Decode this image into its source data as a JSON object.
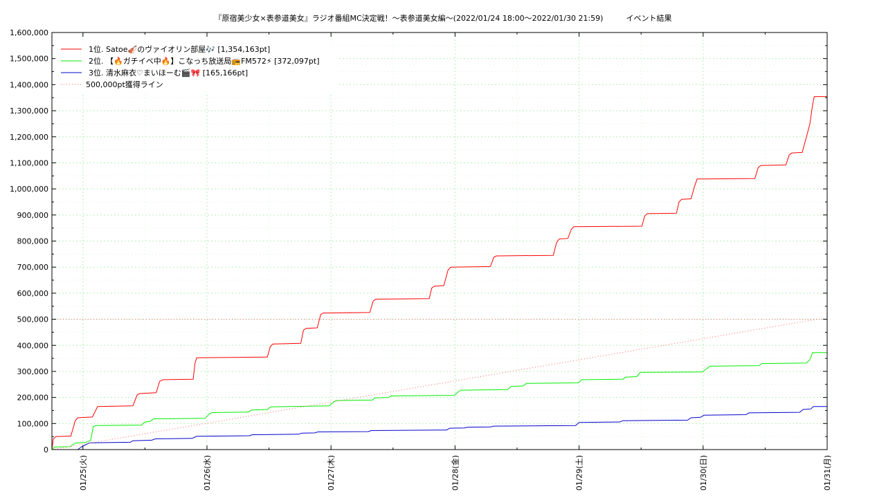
{
  "chart_data": {
    "type": "line",
    "title": "『原宿美少女×表参道美女』ラジオ番組MC決定戦！～表参道美女編～(2022/01/24 18:00～2022/01/30 21:59)　　　イベント結果",
    "xlabel": "",
    "ylabel": "",
    "x_range": [
      "2022/01/24 18:00",
      "2022/01/31 00:00"
    ],
    "ylim": [
      0,
      1600000
    ],
    "y_ticks": [
      "0",
      "100,000",
      "200,000",
      "300,000",
      "400,000",
      "500,000",
      "600,000",
      "700,000",
      "800,000",
      "900,000",
      "1,000,000",
      "1,100,000",
      "1,200,000",
      "1,300,000",
      "1,400,000",
      "1,500,000",
      "1,600,000"
    ],
    "x_ticks": [
      {
        "date": "2022/01/25",
        "label": "01/25(火)"
      },
      {
        "date": "2022/01/26",
        "label": "01/26(水)"
      },
      {
        "date": "2022/01/27",
        "label": "01/27(木)"
      },
      {
        "date": "2022/01/28",
        "label": "01/28(金)"
      },
      {
        "date": "2022/01/29",
        "label": "01/29(土)"
      },
      {
        "date": "2022/01/30",
        "label": "01/30(日)"
      },
      {
        "date": "2022/01/31",
        "label": "01/31(月)"
      }
    ],
    "grid": true,
    "legend_position": "top-left",
    "series": [
      {
        "name": "1位. Satoe🎻のヴァイオリン部屋🎶 [1,354,163pt]",
        "color": "#ff0000",
        "style": "solid",
        "points": [
          [
            "2022/01/24 18:00",
            0
          ],
          [
            "2022/01/24 18:15",
            40000
          ],
          [
            "2022/01/24 18:45",
            50000
          ],
          [
            "2022/01/24 21:40",
            52000
          ],
          [
            "2022/01/24 22:30",
            110000
          ],
          [
            "2022/01/24 23:00",
            122000
          ],
          [
            "2022/01/25 01:50",
            125000
          ],
          [
            "2022/01/25 02:50",
            165000
          ],
          [
            "2022/01/25 09:40",
            168000
          ],
          [
            "2022/01/25 10:30",
            210000
          ],
          [
            "2022/01/25 11:00",
            215000
          ],
          [
            "2022/01/25 14:10",
            218000
          ],
          [
            "2022/01/25 14:50",
            262000
          ],
          [
            "2022/01/25 15:30",
            268000
          ],
          [
            "2022/01/25 21:20",
            270000
          ],
          [
            "2022/01/25 21:40",
            330000
          ],
          [
            "2022/01/25 22:00",
            352000
          ],
          [
            "2022/01/26 11:40",
            355000
          ],
          [
            "2022/01/26 12:15",
            395000
          ],
          [
            "2022/01/26 12:45",
            405000
          ],
          [
            "2022/01/26 18:10",
            408000
          ],
          [
            "2022/01/26 18:40",
            458000
          ],
          [
            "2022/01/26 19:10",
            465000
          ],
          [
            "2022/01/26 21:20",
            467000
          ],
          [
            "2022/01/26 22:00",
            518000
          ],
          [
            "2022/01/26 22:30",
            524000
          ],
          [
            "2022/01/27 07:30",
            526000
          ],
          [
            "2022/01/27 08:10",
            570000
          ],
          [
            "2022/01/27 08:40",
            577000
          ],
          [
            "2022/01/27 19:00",
            579000
          ],
          [
            "2022/01/27 19:30",
            620000
          ],
          [
            "2022/01/27 20:00",
            627000
          ],
          [
            "2022/01/27 21:50",
            629000
          ],
          [
            "2022/01/27 22:40",
            690000
          ],
          [
            "2022/01/27 23:10",
            700000
          ],
          [
            "2022/01/28 06:50",
            702000
          ],
          [
            "2022/01/28 07:30",
            738000
          ],
          [
            "2022/01/28 08:00",
            743000
          ],
          [
            "2022/01/28 19:00",
            745000
          ],
          [
            "2022/01/28 19:40",
            795000
          ],
          [
            "2022/01/28 20:10",
            808000
          ],
          [
            "2022/01/28 21:50",
            810000
          ],
          [
            "2022/01/28 22:30",
            845000
          ],
          [
            "2022/01/28 23:00",
            855000
          ],
          [
            "2022/01/29 12:10",
            857000
          ],
          [
            "2022/01/29 12:40",
            895000
          ],
          [
            "2022/01/29 13:10",
            905000
          ],
          [
            "2022/01/29 18:50",
            907000
          ],
          [
            "2022/01/29 19:20",
            950000
          ],
          [
            "2022/01/29 19:50",
            960000
          ],
          [
            "2022/01/29 21:40",
            962000
          ],
          [
            "2022/01/29 22:20",
            1010000
          ],
          [
            "2022/01/29 22:50",
            1038000
          ],
          [
            "2022/01/30 10:00",
            1040000
          ],
          [
            "2022/01/30 10:40",
            1082000
          ],
          [
            "2022/01/30 11:10",
            1090000
          ],
          [
            "2022/01/30 16:00",
            1092000
          ],
          [
            "2022/01/30 16:40",
            1130000
          ],
          [
            "2022/01/30 17:10",
            1138000
          ],
          [
            "2022/01/30 19:10",
            1140000
          ],
          [
            "2022/01/30 20:00",
            1200000
          ],
          [
            "2022/01/30 20:40",
            1250000
          ],
          [
            "2022/01/30 21:10",
            1320000
          ],
          [
            "2022/01/30 21:30",
            1354163
          ],
          [
            "2022/01/31 00:00",
            1354163
          ]
        ]
      },
      {
        "name": "2位. 【🔥ガチイベ中🔥】こなっち放送局📻FM572⚡ [372,097pt]",
        "color": "#00ee00",
        "style": "solid",
        "points": [
          [
            "2022/01/24 18:00",
            0
          ],
          [
            "2022/01/24 18:30",
            10000
          ],
          [
            "2022/01/24 21:30",
            11000
          ],
          [
            "2022/01/24 22:30",
            25000
          ],
          [
            "2022/01/25 00:30",
            27000
          ],
          [
            "2022/01/25 01:30",
            35000
          ],
          [
            "2022/01/25 02:00",
            88000
          ],
          [
            "2022/01/25 02:30",
            92000
          ],
          [
            "2022/01/25 11:20",
            94000
          ],
          [
            "2022/01/25 12:00",
            106000
          ],
          [
            "2022/01/25 13:00",
            108000
          ],
          [
            "2022/01/25 13:40",
            118000
          ],
          [
            "2022/01/25 23:40",
            120000
          ],
          [
            "2022/01/26 00:30",
            138000
          ],
          [
            "2022/01/26 01:00",
            142000
          ],
          [
            "2022/01/26 08:00",
            144000
          ],
          [
            "2022/01/26 08:40",
            152000
          ],
          [
            "2022/01/26 11:40",
            154000
          ],
          [
            "2022/01/26 12:20",
            164000
          ],
          [
            "2022/01/26 23:40",
            168000
          ],
          [
            "2022/01/27 00:30",
            182000
          ],
          [
            "2022/01/27 01:00",
            188000
          ],
          [
            "2022/01/27 08:00",
            190000
          ],
          [
            "2022/01/27 08:30",
            198000
          ],
          [
            "2022/01/27 11:10",
            200000
          ],
          [
            "2022/01/27 11:40",
            206000
          ],
          [
            "2022/01/27 23:50",
            208000
          ],
          [
            "2022/01/28 00:40",
            222000
          ],
          [
            "2022/01/28 01:10",
            228000
          ],
          [
            "2022/01/28 10:10",
            230000
          ],
          [
            "2022/01/28 10:50",
            242000
          ],
          [
            "2022/01/28 13:10",
            244000
          ],
          [
            "2022/01/28 13:50",
            254000
          ],
          [
            "2022/01/28 23:50",
            256000
          ],
          [
            "2022/01/29 00:30",
            268000
          ],
          [
            "2022/01/29 08:30",
            270000
          ],
          [
            "2022/01/29 09:00",
            278000
          ],
          [
            "2022/01/29 11:10",
            280000
          ],
          [
            "2022/01/29 11:50",
            296000
          ],
          [
            "2022/01/29 23:50",
            298000
          ],
          [
            "2022/01/30 00:40",
            310000
          ],
          [
            "2022/01/30 01:20",
            320000
          ],
          [
            "2022/01/30 10:50",
            322000
          ],
          [
            "2022/01/30 11:20",
            330000
          ],
          [
            "2022/01/30 20:00",
            332000
          ],
          [
            "2022/01/30 20:40",
            345000
          ],
          [
            "2022/01/30 21:10",
            372097
          ],
          [
            "2022/01/31 00:00",
            372097
          ]
        ]
      },
      {
        "name": "3位. 清水麻衣♡まいほーむ🎬🎀 [165,166pt]",
        "color": "#0000cc",
        "style": "solid",
        "points": [
          [
            "2022/01/24 18:00",
            0
          ],
          [
            "2022/01/24 23:00",
            0
          ],
          [
            "2022/01/24 23:50",
            12000
          ],
          [
            "2022/01/25 00:40",
            20000
          ],
          [
            "2022/01/25 01:20",
            26000
          ],
          [
            "2022/01/25 09:10",
            28000
          ],
          [
            "2022/01/25 09:40",
            34000
          ],
          [
            "2022/01/25 13:20",
            36000
          ],
          [
            "2022/01/25 14:00",
            41000
          ],
          [
            "2022/01/25 21:10",
            43000
          ],
          [
            "2022/01/25 22:00",
            51000
          ],
          [
            "2022/01/26 08:10",
            53000
          ],
          [
            "2022/01/26 08:50",
            57000
          ],
          [
            "2022/01/26 17:40",
            59000
          ],
          [
            "2022/01/26 18:20",
            63000
          ],
          [
            "2022/01/26 20:50",
            64000
          ],
          [
            "2022/01/26 21:30",
            68000
          ],
          [
            "2022/01/27 07:10",
            69000
          ],
          [
            "2022/01/27 07:50",
            73000
          ],
          [
            "2022/01/27 22:20",
            75000
          ],
          [
            "2022/01/27 23:00",
            82000
          ],
          [
            "2022/01/28 01:50",
            83000
          ],
          [
            "2022/01/28 02:30",
            86000
          ],
          [
            "2022/01/28 06:50",
            87000
          ],
          [
            "2022/01/28 07:30",
            90000
          ],
          [
            "2022/01/28 23:20",
            92000
          ],
          [
            "2022/01/29 00:00",
            104000
          ],
          [
            "2022/01/29 07:50",
            106000
          ],
          [
            "2022/01/29 08:30",
            111000
          ],
          [
            "2022/01/29 21:00",
            113000
          ],
          [
            "2022/01/29 21:40",
            122000
          ],
          [
            "2022/01/29 23:30",
            124000
          ],
          [
            "2022/01/30 00:10",
            132000
          ],
          [
            "2022/01/30 08:20",
            134000
          ],
          [
            "2022/01/30 08:50",
            141000
          ],
          [
            "2022/01/30 18:40",
            143000
          ],
          [
            "2022/01/30 19:20",
            154000
          ],
          [
            "2022/01/30 20:50",
            156000
          ],
          [
            "2022/01/30 21:20",
            165166
          ],
          [
            "2022/01/31 00:00",
            165166
          ]
        ]
      },
      {
        "name": "500,000pt獲得ライン",
        "color": "#ff6666",
        "style": "dotted",
        "points": [
          [
            "2022/01/24 18:00",
            0
          ],
          [
            "2022/01/30 22:00",
            500000
          ]
        ]
      }
    ],
    "reference_line": {
      "y": 500000,
      "color": "#ff6666",
      "style": "dotted"
    }
  }
}
